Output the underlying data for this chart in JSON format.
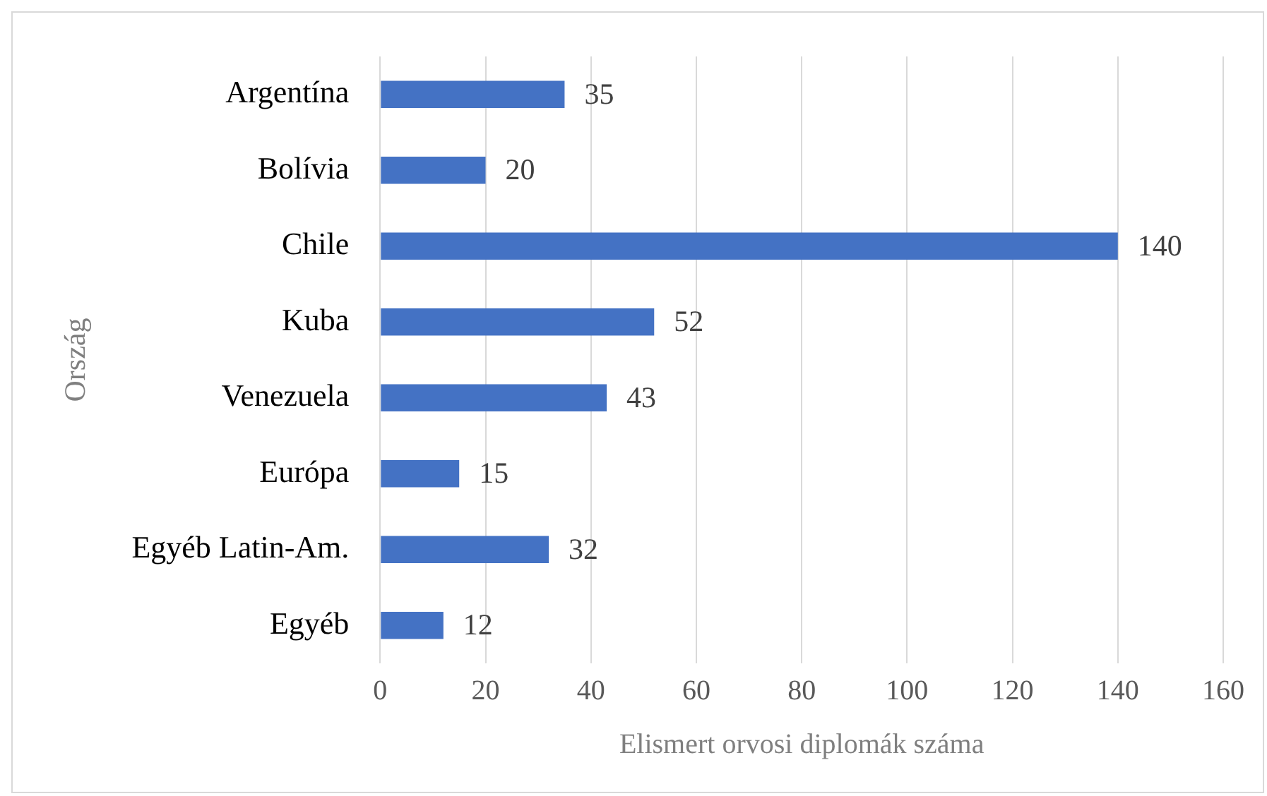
{
  "chart_data": {
    "type": "bar",
    "orientation": "horizontal",
    "xlabel": "Elismert orvosi diplomák száma",
    "ylabel": "Ország",
    "categories": [
      "Argentína",
      "Bolívia",
      "Chile",
      "Kuba",
      "Venezuela",
      "Európa",
      "Egyéb Latin-Am.",
      "Egyéb"
    ],
    "values": [
      35,
      20,
      140,
      52,
      43,
      15,
      32,
      12
    ],
    "color": "#4472c4",
    "xlim": [
      0,
      160
    ],
    "xticks": [
      0,
      20,
      40,
      60,
      80,
      100,
      120,
      140,
      160
    ],
    "grid": "x",
    "data_labels": true,
    "legend": false
  }
}
